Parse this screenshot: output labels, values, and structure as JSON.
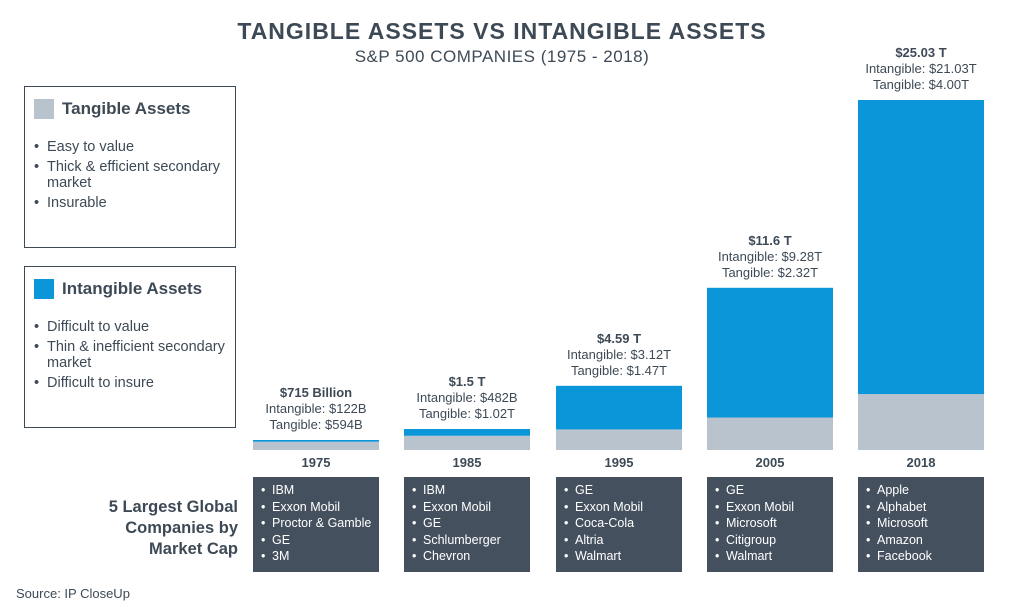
{
  "title": "TANGIBLE ASSETS VS INTANGIBLE ASSETS",
  "subtitle": "S&P 500 COMPANIES (1975 - 2018)",
  "legend": {
    "tangible": {
      "title": "Tangible Assets",
      "color": "#b9c3ce",
      "bullets": [
        "Easy to value",
        "Thick & efficient secondary market",
        "Insurable"
      ]
    },
    "intangible": {
      "title": "Intangible Assets",
      "color": "#0a96d8",
      "bullets": [
        "Difficult to value",
        "Thin & inefficient secondary market",
        "Difficult to insure"
      ]
    }
  },
  "companies_label": "5 Largest Global Companies by Market Cap",
  "source": "Source: IP CloseUp",
  "chart_data": {
    "type": "bar",
    "stacked": true,
    "categories": [
      "1975",
      "1985",
      "1995",
      "2005",
      "2018"
    ],
    "unit": "trillion USD",
    "series": [
      {
        "name": "Tangible Assets",
        "color": "#b9c3ce",
        "values": [
          0.594,
          1.02,
          1.47,
          2.32,
          4.0
        ]
      },
      {
        "name": "Intangible Assets",
        "color": "#0a96d8",
        "values": [
          0.122,
          0.482,
          3.12,
          9.28,
          21.03
        ]
      }
    ],
    "ylim": [
      0,
      25.03
    ],
    "annotations": [
      {
        "total": "$715 Billion",
        "intangible": "Intangible: $122B",
        "tangible": "Tangible: $594B"
      },
      {
        "total": "$1.5 T",
        "intangible": "Intangible: $482B",
        "tangible": "Tangible: $1.02T"
      },
      {
        "total": "$4.59 T",
        "intangible": "Intangible: $3.12T",
        "tangible": "Tangible: $1.47T"
      },
      {
        "total": "$11.6 T",
        "intangible": "Intangible: $9.28T",
        "tangible": "Tangible: $2.32T"
      },
      {
        "total": "$25.03 T",
        "intangible": "Intangible: $21.03T",
        "tangible": "Tangible: $4.00T"
      }
    ],
    "companies": [
      [
        "IBM",
        "Exxon Mobil",
        "Proctor & Gamble",
        "GE",
        "3M"
      ],
      [
        "IBM",
        "Exxon Mobil",
        "GE",
        "Schlumberger",
        "Chevron"
      ],
      [
        "GE",
        "Exxon Mobil",
        "Coca-Cola",
        "Altria",
        "Walmart"
      ],
      [
        "GE",
        "Exxon Mobil",
        "Microsoft",
        "Citigroup",
        "Walmart"
      ],
      [
        "Apple",
        "Alphabet",
        "Microsoft",
        "Amazon",
        "Facebook"
      ]
    ],
    "grid": false,
    "legend_position": "left"
  }
}
